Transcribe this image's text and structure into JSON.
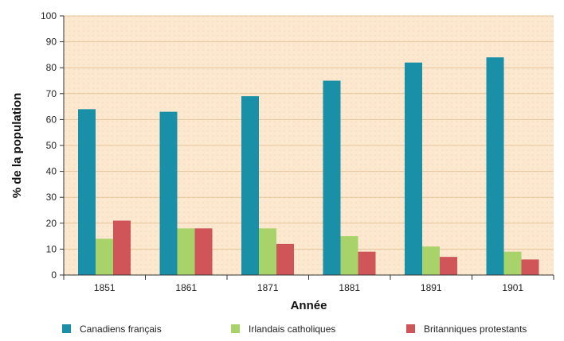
{
  "chart_data": {
    "type": "bar",
    "categories": [
      "1851",
      "1861",
      "1871",
      "1881",
      "1891",
      "1901"
    ],
    "series": [
      {
        "name": "Canadiens français",
        "color": "#1a8fa8",
        "values": [
          64,
          63,
          69,
          75,
          82,
          84
        ]
      },
      {
        "name": "Irlandais catholiques",
        "color": "#a8d36a",
        "values": [
          14,
          18,
          18,
          15,
          11,
          9
        ]
      },
      {
        "name": "Britanniques protestants",
        "color": "#cf5558",
        "values": [
          21,
          18,
          12,
          9,
          7,
          6
        ]
      }
    ],
    "xlabel": "Année",
    "ylabel": "% de la population",
    "ylim": [
      0,
      100
    ],
    "yticks": [
      0,
      10,
      20,
      30,
      40,
      50,
      60,
      70,
      80,
      90,
      100
    ],
    "grid": true,
    "legend_position": "bottom",
    "plot_background": "#fbe8cf"
  }
}
